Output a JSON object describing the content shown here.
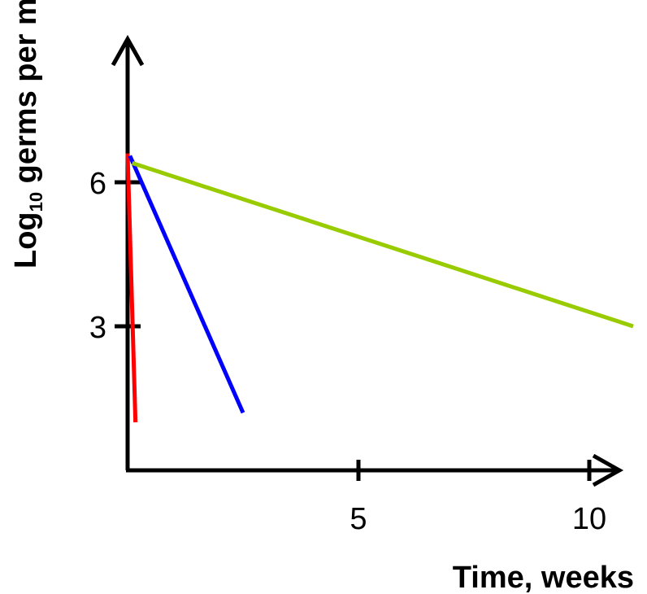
{
  "chart_data": {
    "type": "line",
    "title": "",
    "xlabel": "Time, weeks",
    "ylabel": {
      "base": "Log",
      "subscript": "10",
      "rest": " germs per ml slurry"
    },
    "x_ticks": [
      5,
      10
    ],
    "y_ticks": [
      3,
      6
    ],
    "grid": false,
    "legend": "none",
    "series": [
      {
        "color": "#ff0000",
        "points": [
          [
            0,
            6.6
          ],
          [
            0.17,
            1.0
          ]
        ]
      },
      {
        "color": "#0000ff",
        "points": [
          [
            0.05,
            6.55
          ],
          [
            2.5,
            1.2
          ]
        ]
      },
      {
        "color": "#99cc00",
        "points": [
          [
            0.1,
            6.4
          ],
          [
            10.95,
            3.0
          ]
        ]
      }
    ]
  }
}
